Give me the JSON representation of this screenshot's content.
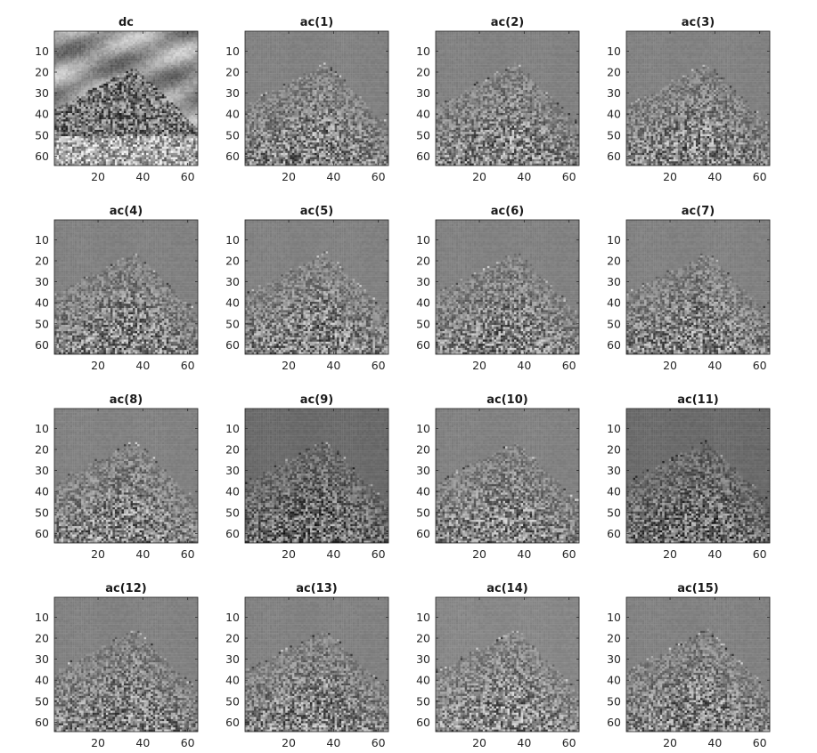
{
  "chart_data": {
    "type": "heatmap",
    "colormap": "gray",
    "grid": false,
    "xlim": [
      0.5,
      64.5
    ],
    "ylim": [
      0.5,
      64.5
    ],
    "y_direction": "reversed",
    "x_ticks": [
      "20",
      "40",
      "60"
    ],
    "y_ticks": [
      "10",
      "20",
      "30",
      "40",
      "50",
      "60"
    ],
    "panels": [
      {
        "title": "dc",
        "kind": "image"
      },
      {
        "title": "ac(1)",
        "kind": "coefficient"
      },
      {
        "title": "ac(2)",
        "kind": "coefficient"
      },
      {
        "title": "ac(3)",
        "kind": "coefficient"
      },
      {
        "title": "ac(4)",
        "kind": "coefficient"
      },
      {
        "title": "ac(5)",
        "kind": "coefficient"
      },
      {
        "title": "ac(6)",
        "kind": "coefficient"
      },
      {
        "title": "ac(7)",
        "kind": "coefficient"
      },
      {
        "title": "ac(8)",
        "kind": "coefficient"
      },
      {
        "title": "ac(9)",
        "kind": "coefficient"
      },
      {
        "title": "ac(10)",
        "kind": "coefficient"
      },
      {
        "title": "ac(11)",
        "kind": "coefficient"
      },
      {
        "title": "ac(12)",
        "kind": "coefficient"
      },
      {
        "title": "ac(13)",
        "kind": "coefficient"
      },
      {
        "title": "ac(14)",
        "kind": "coefficient"
      },
      {
        "title": "ac(15)",
        "kind": "coefficient"
      }
    ]
  }
}
